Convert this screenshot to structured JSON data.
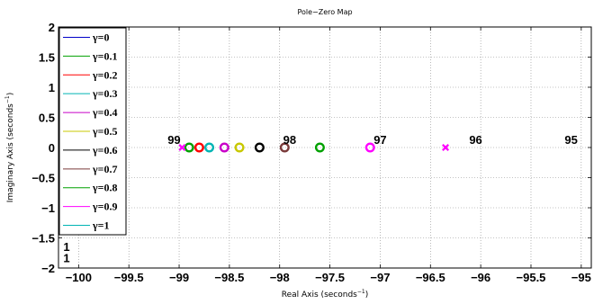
{
  "chart_data": {
    "type": "scatter",
    "title": "Pole−Zero Map",
    "xlabel": "Real Axis (seconds",
    "ylabel": "Imaginary Axis (seconds",
    "unit_exponent": "−1",
    "xlim": [
      -100.2,
      -94.9
    ],
    "ylim": [
      -2,
      2
    ],
    "x_ticks": [
      -100,
      -99.5,
      -99,
      -98.5,
      -98,
      -97.5,
      -97,
      -96.5,
      -96,
      -95.5,
      -95
    ],
    "x_tick_labels": [
      "−100",
      "−99.5",
      "−99",
      "−98.5",
      "−98",
      "−97.5",
      "−97",
      "−96.5",
      "−96",
      "−95.5",
      "−95"
    ],
    "y_ticks": [
      2,
      1.5,
      1,
      0.5,
      0,
      -0.5,
      -1,
      -1.5,
      -2
    ],
    "y_tick_labels": [
      "2",
      "1.5",
      "1",
      "0.5",
      "0",
      "−0.5",
      "−1",
      "−1.5",
      "−2"
    ],
    "grid": true,
    "legend_position": "left",
    "series": [
      {
        "name": "γ=0",
        "color": "#0000c8",
        "zeros": [],
        "poles": []
      },
      {
        "name": "γ=0.1",
        "color": "#00a000",
        "zeros": [
          -98.9
        ],
        "poles": []
      },
      {
        "name": "γ=0.2",
        "color": "#ff0000",
        "zeros": [
          -98.8
        ],
        "poles": []
      },
      {
        "name": "γ=0.3",
        "color": "#00b4b4",
        "zeros": [
          -98.7
        ],
        "poles": []
      },
      {
        "name": "γ=0.4",
        "color": "#c800c8",
        "zeros": [
          -98.55
        ],
        "poles": []
      },
      {
        "name": "γ=0.5",
        "color": "#c8c800",
        "zeros": [
          -98.4
        ],
        "poles": []
      },
      {
        "name": "γ=0.6",
        "color": "#000000",
        "zeros": [
          -98.2
        ],
        "poles": []
      },
      {
        "name": "γ=0.7",
        "color": "#7a3a3a",
        "zeros": [
          -97.95
        ],
        "poles": []
      },
      {
        "name": "γ=0.8",
        "color": "#00a000",
        "zeros": [
          -97.6
        ],
        "poles": []
      },
      {
        "name": "γ=0.9",
        "color": "#ff00ff",
        "zeros": [
          -97.1
        ],
        "poles": [
          -98.97,
          -96.35
        ]
      },
      {
        "name": "γ=1",
        "color": "#00b4b4",
        "zeros": [],
        "poles": []
      }
    ],
    "annotations": [
      {
        "text": "99",
        "x": -99.05,
        "y": 0.06
      },
      {
        "text": "98",
        "x": -97.9,
        "y": 0.06
      },
      {
        "text": "97",
        "x": -97.0,
        "y": 0.06
      },
      {
        "text": "96",
        "x": -96.05,
        "y": 0.06
      },
      {
        "text": "95",
        "x": -95.1,
        "y": 0.06
      },
      {
        "text": "1",
        "x": -100.12,
        "y": -1.72
      },
      {
        "text": "1",
        "x": -100.12,
        "y": -1.9
      }
    ]
  }
}
